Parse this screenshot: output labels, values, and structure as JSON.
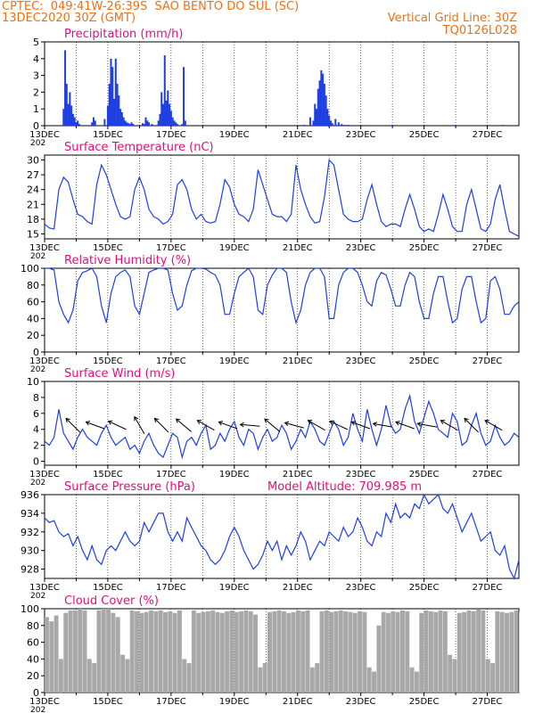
{
  "header": {
    "line1_left": "CPTEC:  049:41W-26:39S  SAO BENTO DO SUL (SC)",
    "line2_left": "13DEC2020 30Z (GMT)",
    "line2_right": "Vertical Grid Line: 30Z",
    "line3_right": "TQ0126L028"
  },
  "colors": {
    "header": "#e8731a",
    "panel_title": "#e0107a",
    "series": "#1f3fe0",
    "cloud": "#a8a8a8",
    "wind_arrow": "#000000"
  },
  "x_axis": {
    "ticks": [
      "13DEC",
      "15DEC",
      "17DEC",
      "19DEC",
      "21DEC",
      "23DEC",
      "25DEC",
      "27DEC"
    ],
    "year_stub": "202"
  },
  "chart_data": [
    {
      "id": "precip",
      "type": "bar",
      "title": "Precipitation  (mm/h)",
      "ylim": [
        0,
        5
      ],
      "yticks": [
        "0",
        "1",
        "2",
        "3",
        "4",
        "5"
      ],
      "x_unit": "days since 13DEC 00Z",
      "x": [
        0.6,
        0.65,
        0.7,
        0.75,
        0.8,
        0.85,
        0.9,
        0.95,
        1.0,
        1.05,
        1.1,
        1.5,
        1.55,
        1.6,
        1.9,
        2.0,
        2.05,
        2.1,
        2.15,
        2.2,
        2.25,
        2.3,
        2.35,
        2.4,
        2.45,
        2.5,
        2.55,
        2.6,
        2.65,
        2.7,
        2.75,
        2.8,
        3.1,
        3.15,
        3.2,
        3.25,
        3.3,
        3.4,
        3.6,
        3.65,
        3.7,
        3.75,
        3.8,
        3.85,
        3.9,
        3.95,
        4.0,
        4.05,
        4.1,
        4.15,
        4.2,
        4.35,
        4.4,
        4.45,
        8.2,
        8.4,
        8.5,
        8.55,
        8.6,
        8.65,
        8.7,
        8.75,
        8.8,
        8.85,
        8.9,
        8.95,
        9.0,
        9.05,
        9.1,
        9.2,
        9.3,
        9.4,
        9.5,
        9.6,
        10.0,
        11.0,
        12.0,
        13.0,
        14.0,
        14.5
      ],
      "values": [
        1.0,
        4.5,
        2.5,
        1.3,
        2.0,
        1.2,
        0.7,
        0.5,
        0.2,
        0.3,
        0.1,
        0.2,
        0.5,
        0.3,
        0.4,
        1.2,
        2.5,
        4.0,
        3.5,
        1.6,
        4.0,
        2.5,
        1.8,
        1.0,
        0.8,
        0.5,
        0.3,
        0.2,
        0.15,
        0.1,
        0.2,
        0.1,
        0.15,
        0.1,
        0.5,
        0.3,
        0.2,
        0.1,
        0.3,
        0.7,
        2.0,
        1.3,
        4.2,
        1.5,
        2.1,
        1.3,
        0.9,
        0.5,
        0.3,
        0.2,
        0.1,
        0.1,
        3.5,
        0.3,
        0.05,
        0.5,
        0.3,
        1.3,
        1.0,
        2.2,
        2.7,
        3.3,
        3.1,
        2.5,
        1.8,
        1.0,
        0.6,
        0.3,
        0.15,
        0.4,
        0.2,
        0.1,
        0.05,
        0.05,
        0.05,
        0.05,
        0.05,
        0.05,
        0.05,
        0.05
      ]
    },
    {
      "id": "temp",
      "type": "line",
      "title": "Surface Temperature (nC)",
      "ylim": [
        14,
        31
      ],
      "yticks": [
        "15",
        "18",
        "21",
        "24",
        "27",
        "30"
      ],
      "x_unit": "days since 13DEC 00Z",
      "x": [
        0,
        0.15,
        0.3,
        0.45,
        0.6,
        0.75,
        0.9,
        1.05,
        1.2,
        1.35,
        1.5,
        1.65,
        1.8,
        1.95,
        2.1,
        2.25,
        2.4,
        2.55,
        2.7,
        2.85,
        3.0,
        3.15,
        3.3,
        3.45,
        3.6,
        3.75,
        3.9,
        4.05,
        4.2,
        4.35,
        4.5,
        4.65,
        4.8,
        4.95,
        5.1,
        5.25,
        5.4,
        5.55,
        5.7,
        5.85,
        6.0,
        6.15,
        6.3,
        6.45,
        6.6,
        6.75,
        6.9,
        7.05,
        7.2,
        7.35,
        7.5,
        7.65,
        7.8,
        7.95,
        8.1,
        8.25,
        8.4,
        8.55,
        8.7,
        8.85,
        9.0,
        9.15,
        9.3,
        9.45,
        9.6,
        9.75,
        9.9,
        10.05,
        10.2,
        10.35,
        10.5,
        10.65,
        10.8,
        10.95,
        11.1,
        11.25,
        11.4,
        11.55,
        11.7,
        11.85,
        12.0,
        12.15,
        12.3,
        12.45,
        12.6,
        12.75,
        12.9,
        13.05,
        13.2,
        13.35,
        13.5,
        13.65,
        13.8,
        13.95,
        14.1,
        14.25,
        14.4,
        14.55,
        14.7,
        14.85,
        15.0
      ],
      "values": [
        17,
        16.2,
        16,
        24,
        26.5,
        25.5,
        22,
        19,
        18.5,
        17.5,
        17,
        25,
        29,
        27,
        24,
        21,
        18.5,
        18,
        18.5,
        24,
        26.5,
        24,
        20,
        18.5,
        18,
        17,
        17.5,
        19,
        25,
        26,
        24,
        20,
        18,
        19,
        17.5,
        17.2,
        17.5,
        21,
        26,
        24.5,
        21,
        19,
        18.5,
        17.5,
        20,
        28,
        25,
        22,
        19,
        18.5,
        18.5,
        17.5,
        19,
        29,
        24,
        21,
        18.5,
        17.2,
        17.5,
        22.5,
        30,
        29,
        24,
        19,
        18,
        17.5,
        17.5,
        18,
        22,
        25,
        21,
        17.5,
        16.5,
        17,
        17,
        16.5,
        20,
        23,
        20,
        16.5,
        15.5,
        16,
        15.5,
        19,
        23,
        20,
        16.5,
        15.5,
        15.5,
        21,
        24,
        20,
        16,
        15.5,
        17,
        22,
        25,
        20,
        15.5,
        15,
        14.5
      ]
    },
    {
      "id": "rh",
      "type": "line",
      "title": "Relative Humidity (%)",
      "ylim": [
        0,
        100
      ],
      "yticks": [
        "0",
        "20",
        "40",
        "60",
        "80",
        "100"
      ],
      "x_unit": "days since 13DEC 00Z",
      "x": [
        0,
        0.15,
        0.3,
        0.45,
        0.6,
        0.75,
        0.9,
        1.05,
        1.2,
        1.35,
        1.5,
        1.65,
        1.8,
        1.95,
        2.1,
        2.25,
        2.4,
        2.55,
        2.7,
        2.85,
        3.0,
        3.15,
        3.3,
        3.45,
        3.6,
        3.75,
        3.9,
        4.05,
        4.2,
        4.35,
        4.5,
        4.65,
        4.8,
        4.95,
        5.1,
        5.25,
        5.4,
        5.55,
        5.7,
        5.85,
        6.0,
        6.15,
        6.3,
        6.45,
        6.6,
        6.75,
        6.9,
        7.05,
        7.2,
        7.35,
        7.5,
        7.65,
        7.8,
        7.95,
        8.1,
        8.25,
        8.4,
        8.55,
        8.7,
        8.85,
        9.0,
        9.15,
        9.3,
        9.45,
        9.6,
        9.75,
        9.9,
        10.05,
        10.2,
        10.35,
        10.5,
        10.65,
        10.8,
        10.95,
        11.1,
        11.25,
        11.4,
        11.55,
        11.7,
        11.85,
        12.0,
        12.15,
        12.3,
        12.45,
        12.6,
        12.75,
        12.9,
        13.05,
        13.2,
        13.35,
        13.5,
        13.65,
        13.8,
        13.95,
        14.1,
        14.25,
        14.4,
        14.55,
        14.7,
        14.85,
        15.0
      ],
      "values": [
        100,
        100,
        98,
        60,
        45,
        35,
        50,
        85,
        95,
        97,
        100,
        90,
        55,
        35,
        70,
        90,
        95,
        98,
        90,
        55,
        45,
        70,
        95,
        98,
        100,
        100,
        98,
        70,
        50,
        55,
        80,
        97,
        100,
        100,
        99,
        95,
        92,
        80,
        45,
        45,
        70,
        90,
        95,
        100,
        90,
        50,
        45,
        80,
        92,
        100,
        100,
        95,
        60,
        35,
        50,
        80,
        95,
        100,
        100,
        90,
        40,
        40,
        80,
        95,
        100,
        100,
        95,
        80,
        60,
        55,
        85,
        95,
        92,
        75,
        55,
        55,
        80,
        95,
        90,
        60,
        40,
        40,
        70,
        90,
        90,
        60,
        35,
        40,
        75,
        90,
        90,
        60,
        35,
        40,
        85,
        90,
        75,
        45,
        45,
        55,
        60
      ]
    },
    {
      "id": "wind",
      "type": "line",
      "title": "Surface Wind  (m/s)",
      "ylim": [
        -0.5,
        10
      ],
      "yticks": [
        "0",
        "2",
        "4",
        "6",
        "8",
        "10"
      ],
      "x_unit": "days since 13DEC 00Z",
      "x": [
        0,
        0.15,
        0.3,
        0.45,
        0.6,
        0.75,
        0.9,
        1.05,
        1.2,
        1.35,
        1.5,
        1.65,
        1.8,
        1.95,
        2.1,
        2.25,
        2.4,
        2.55,
        2.7,
        2.85,
        3.0,
        3.15,
        3.3,
        3.45,
        3.6,
        3.75,
        3.9,
        4.05,
        4.2,
        4.35,
        4.5,
        4.65,
        4.8,
        4.95,
        5.1,
        5.25,
        5.4,
        5.55,
        5.7,
        5.85,
        6.0,
        6.15,
        6.3,
        6.45,
        6.6,
        6.75,
        6.9,
        7.05,
        7.2,
        7.35,
        7.5,
        7.65,
        7.8,
        7.95,
        8.1,
        8.25,
        8.4,
        8.55,
        8.7,
        8.85,
        9.0,
        9.15,
        9.3,
        9.45,
        9.6,
        9.75,
        9.9,
        10.05,
        10.2,
        10.35,
        10.5,
        10.65,
        10.8,
        10.95,
        11.1,
        11.25,
        11.4,
        11.55,
        11.7,
        11.85,
        12.0,
        12.15,
        12.3,
        12.45,
        12.6,
        12.75,
        12.9,
        13.05,
        13.2,
        13.35,
        13.5,
        13.65,
        13.8,
        13.95,
        14.1,
        14.25,
        14.4,
        14.55,
        14.7,
        14.85,
        15.0
      ],
      "values": [
        2.5,
        2,
        3,
        6.5,
        3.5,
        2.5,
        1.5,
        3,
        4,
        3,
        2.5,
        2,
        3.5,
        4.5,
        3,
        2,
        2.5,
        3,
        1.5,
        2,
        1,
        2.5,
        3.5,
        2,
        1,
        0.5,
        2,
        3.5,
        3,
        0.5,
        2.5,
        3,
        2,
        3.5,
        4.5,
        1.5,
        2,
        3.5,
        2.5,
        4,
        5,
        3,
        2,
        4,
        3.5,
        1.5,
        3,
        4,
        2.5,
        3,
        4.5,
        3.5,
        1.5,
        2.5,
        4,
        3,
        5,
        4,
        2.5,
        2,
        3.5,
        5,
        4,
        2,
        3,
        6,
        4,
        2.5,
        6.5,
        4,
        2,
        4,
        7,
        4.5,
        3.5,
        4,
        6.5,
        8.2,
        5,
        3.5,
        5.5,
        7.5,
        6,
        4,
        3.5,
        3,
        6,
        5,
        2,
        2.5,
        4.5,
        6,
        3.5,
        2,
        2.5,
        4.5,
        3,
        2,
        2.5,
        3.5,
        3
      ]
    },
    {
      "id": "pressure",
      "type": "line",
      "title": "Surface Pressure (hPa)",
      "annotation": "Model Altitude: 709.985  m",
      "ylim": [
        927,
        936
      ],
      "yticks": [
        "928",
        "930",
        "932",
        "934",
        "936"
      ],
      "x_unit": "days since 13DEC 00Z",
      "x": [
        0,
        0.15,
        0.3,
        0.45,
        0.6,
        0.75,
        0.9,
        1.05,
        1.2,
        1.35,
        1.5,
        1.65,
        1.8,
        1.95,
        2.1,
        2.25,
        2.4,
        2.55,
        2.7,
        2.85,
        3.0,
        3.15,
        3.3,
        3.45,
        3.6,
        3.75,
        3.9,
        4.05,
        4.2,
        4.35,
        4.5,
        4.65,
        4.8,
        4.95,
        5.1,
        5.25,
        5.4,
        5.55,
        5.7,
        5.85,
        6.0,
        6.15,
        6.3,
        6.45,
        6.6,
        6.75,
        6.9,
        7.05,
        7.2,
        7.35,
        7.5,
        7.65,
        7.8,
        7.95,
        8.1,
        8.25,
        8.4,
        8.55,
        8.7,
        8.85,
        9.0,
        9.15,
        9.3,
        9.45,
        9.6,
        9.75,
        9.9,
        10.05,
        10.2,
        10.35,
        10.5,
        10.65,
        10.8,
        10.95,
        11.1,
        11.25,
        11.4,
        11.55,
        11.7,
        11.85,
        12.0,
        12.15,
        12.3,
        12.45,
        12.6,
        12.75,
        12.9,
        13.05,
        13.2,
        13.35,
        13.5,
        13.65,
        13.8,
        13.95,
        14.1,
        14.25,
        14.4,
        14.55,
        14.7,
        14.85,
        15.0
      ],
      "values": [
        933.5,
        933,
        933.2,
        932,
        931.5,
        931.8,
        930.5,
        931.5,
        930,
        929,
        930.5,
        929,
        928.5,
        930,
        930.5,
        930,
        931,
        932,
        931,
        930.5,
        931,
        933,
        932,
        933,
        934,
        934,
        932,
        931,
        932,
        931,
        933.5,
        932.5,
        931.5,
        930.5,
        930,
        929,
        928.5,
        929,
        930,
        931.5,
        932.5,
        931.5,
        930,
        929,
        928,
        928.5,
        929.5,
        931,
        930,
        931,
        929,
        930.5,
        929.5,
        930.5,
        932,
        931,
        929,
        930,
        931,
        930.5,
        932,
        931.5,
        931,
        932.5,
        931.5,
        932,
        933.5,
        932.5,
        931,
        930.5,
        932,
        931.5,
        934,
        933,
        935,
        933.5,
        934,
        933.5,
        935,
        934.5,
        936,
        935,
        935.5,
        936,
        934.5,
        934,
        935,
        933.5,
        932,
        933,
        934,
        932.5,
        931,
        931.5,
        932,
        930,
        929.5,
        930.5,
        928,
        927,
        929
      ]
    },
    {
      "id": "cloud",
      "type": "area",
      "title": "Cloud Cover (%)",
      "ylim": [
        0,
        100
      ],
      "yticks": [
        "0",
        "20",
        "40",
        "60",
        "80",
        "100"
      ],
      "x_unit": "days since 13DEC 00Z",
      "x": [
        0,
        0.15,
        0.3,
        0.45,
        0.6,
        0.75,
        0.9,
        1.05,
        1.2,
        1.35,
        1.5,
        1.65,
        1.8,
        1.95,
        2.1,
        2.25,
        2.4,
        2.55,
        2.7,
        2.85,
        3.0,
        3.15,
        3.3,
        3.45,
        3.6,
        3.75,
        3.9,
        4.05,
        4.2,
        4.35,
        4.5,
        4.65,
        4.8,
        4.95,
        5.1,
        5.25,
        5.4,
        5.55,
        5.7,
        5.85,
        6.0,
        6.15,
        6.3,
        6.45,
        6.6,
        6.75,
        6.9,
        7.05,
        7.2,
        7.35,
        7.5,
        7.65,
        7.8,
        7.95,
        8.1,
        8.25,
        8.4,
        8.55,
        8.7,
        8.85,
        9.0,
        9.15,
        9.3,
        9.45,
        9.6,
        9.75,
        9.9,
        10.05,
        10.2,
        10.35,
        10.5,
        10.65,
        10.8,
        10.95,
        11.1,
        11.25,
        11.4,
        11.55,
        11.7,
        11.85,
        12.0,
        12.15,
        12.3,
        12.45,
        12.6,
        12.75,
        12.9,
        13.05,
        13.2,
        13.35,
        13.5,
        13.65,
        13.8,
        13.95,
        14.1,
        14.25,
        14.4,
        14.55,
        14.7,
        14.85,
        15.0
      ],
      "values": [
        90,
        85,
        92,
        40,
        95,
        98,
        98,
        100,
        98,
        40,
        35,
        98,
        100,
        100,
        95,
        90,
        45,
        40,
        98,
        97,
        95,
        96,
        98,
        97,
        98,
        96,
        97,
        95,
        98,
        40,
        35,
        98,
        95,
        96,
        97,
        98,
        96,
        95,
        97,
        98,
        96,
        97,
        98,
        97,
        93,
        30,
        35,
        96,
        97,
        98,
        97,
        95,
        96,
        98,
        97,
        98,
        30,
        35,
        97,
        98,
        96,
        97,
        98,
        97,
        96,
        95,
        97,
        96,
        30,
        25,
        80,
        96,
        95,
        97,
        96,
        98,
        97,
        30,
        25,
        95,
        98,
        97,
        96,
        98,
        97,
        45,
        40,
        95,
        96,
        98,
        97,
        99,
        98,
        40,
        35,
        97,
        96,
        95,
        96,
        98,
        97
      ]
    }
  ],
  "wind_arrows": {
    "x_unit": "days since 13DEC 00Z",
    "x": [
      0.9,
      1.6,
      2.3,
      3.0,
      3.7,
      4.4,
      5.1,
      5.8,
      6.5,
      7.2,
      7.9,
      8.6,
      9.3,
      10.0,
      10.7,
      11.4,
      12.1,
      12.8,
      13.5,
      14.2
    ],
    "dir_deg": [
      -45,
      -20,
      -25,
      -60,
      -45,
      -40,
      -30,
      -20,
      -5,
      -40,
      -15,
      -30,
      -25,
      -20,
      -10,
      -20,
      -10,
      -30,
      -45,
      -30
    ]
  }
}
